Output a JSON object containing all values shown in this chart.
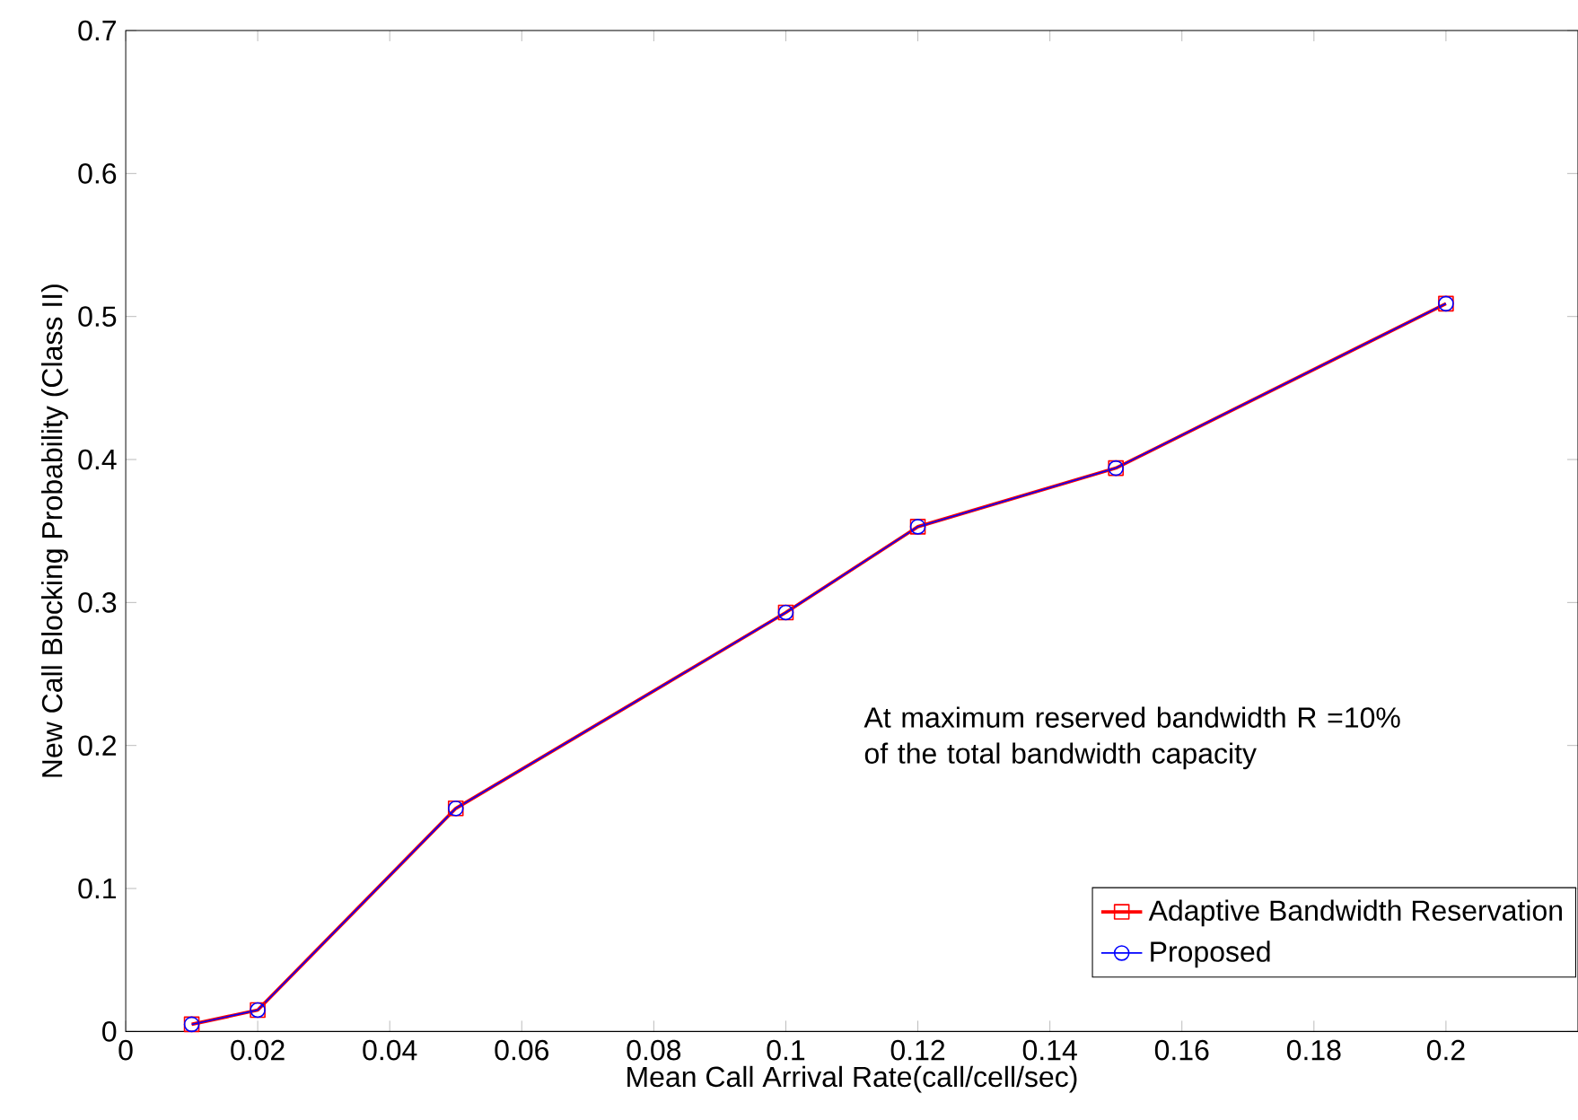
{
  "chart_data": {
    "type": "line",
    "xlabel": "Mean Call Arrival Rate(call/cell/sec)",
    "ylabel": "New Call Blocking Probability (Class II)",
    "annotations": [
      "At maximum reserved bandwidth R =10% of the total bandwidth capacity"
    ],
    "x": [
      0.01,
      0.02,
      0.05,
      0.1,
      0.12,
      0.15,
      0.2
    ],
    "series": [
      {
        "name": "Adaptive Bandwidth Reservation",
        "color": "#ff0000",
        "marker": "square",
        "values": [
          0.005,
          0.015,
          0.156,
          0.293,
          0.353,
          0.394,
          0.509
        ]
      },
      {
        "name": "Proposed",
        "color": "#0000ff",
        "marker": "circle",
        "values": [
          0.005,
          0.015,
          0.156,
          0.293,
          0.353,
          0.394,
          0.509
        ]
      }
    ],
    "xlim": [
      0,
      0.22
    ],
    "ylim": [
      0,
      0.7
    ],
    "xticks": [
      0,
      0.02,
      0.04,
      0.06,
      0.08,
      0.1,
      0.12,
      0.14,
      0.16,
      0.18,
      0.2
    ],
    "yticks": [
      0,
      0.1,
      0.2,
      0.3,
      0.4,
      0.5,
      0.6,
      0.7
    ],
    "grid": false,
    "legend": "bottom right",
    "line_style": "solid"
  }
}
